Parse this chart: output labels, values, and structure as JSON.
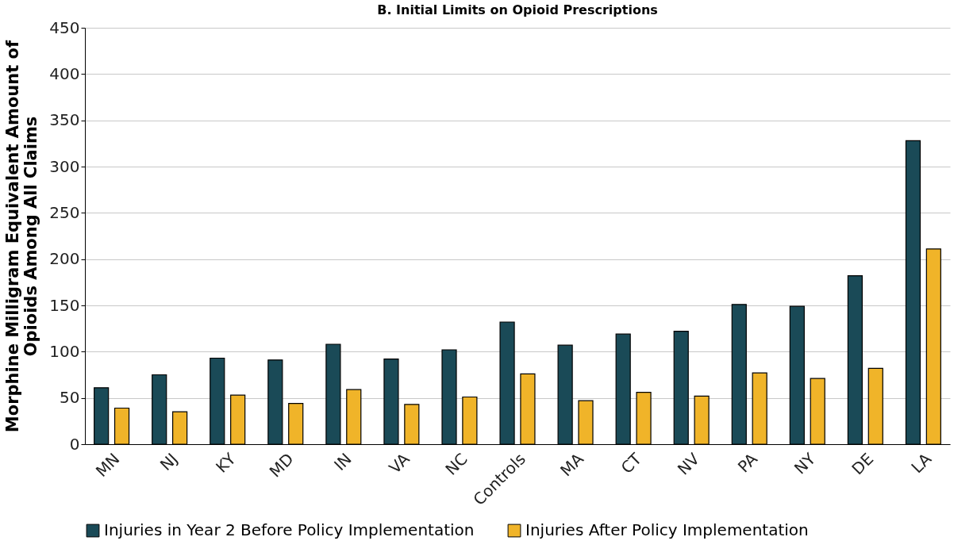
{
  "chart_data": {
    "type": "bar",
    "title": "B. Initial Limits on Opioid Prescriptions",
    "ylabel": "Morphine Milligram Equivalent Amount of\nOpioids Among All Claims",
    "categories": [
      "MN",
      "NJ",
      "KY",
      "MD",
      "IN",
      "VA",
      "NC",
      "Controls",
      "MA",
      "CT",
      "NV",
      "PA",
      "NY",
      "DE",
      "LA"
    ],
    "series": [
      {
        "name": "Injuries in Year 2 Before Policy Implementation",
        "color": "#1a4a57",
        "values": [
          61,
          75,
          93,
          91,
          108,
          92,
          102,
          132,
          107,
          119,
          122,
          151,
          149,
          182,
          328
        ]
      },
      {
        "name": "Injuries After Policy Implementation",
        "color": "#f0b429",
        "values": [
          39,
          35,
          53,
          44,
          59,
          43,
          51,
          76,
          47,
          56,
          52,
          77,
          71,
          82,
          211
        ]
      }
    ],
    "ylim": [
      0,
      450
    ],
    "yticks": [
      0,
      50,
      100,
      150,
      200,
      250,
      300,
      350,
      400,
      450
    ],
    "grid": "y",
    "legend": "bottom"
  }
}
